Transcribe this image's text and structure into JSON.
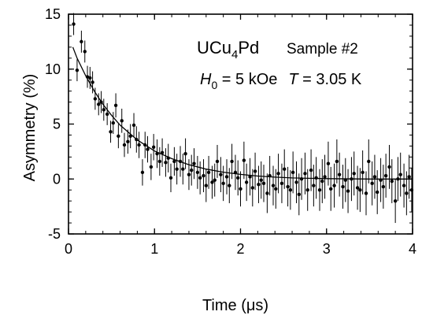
{
  "chart_data": {
    "type": "scatter",
    "xlabel": "Time  (μs)",
    "ylabel": "Asymmetry  (%)",
    "xlim": [
      0,
      4
    ],
    "ylim": [
      -5,
      15
    ],
    "x_ticks": [
      0,
      1,
      2,
      3,
      4
    ],
    "y_ticks": [
      -5,
      0,
      5,
      10,
      15
    ],
    "x_tick_labels": [
      "0",
      "1",
      "2",
      "3",
      "4"
    ],
    "y_tick_labels": [
      "-5",
      "0",
      "5",
      "10",
      "15"
    ],
    "grid": false,
    "legend": "none",
    "annotations": {
      "compound_main": "UCu",
      "compound_sub1": "4",
      "compound_end": "Pd",
      "sample": "Sample #2",
      "field_symbol": "H",
      "field_sub": "0",
      "field_value": " = 5 kOe",
      "temp_symbol": "T",
      "temp_value": " = 3.05 K"
    },
    "fit_curve": {
      "label": "",
      "x": [
        0.05,
        0.1,
        0.2,
        0.3,
        0.4,
        0.5,
        0.6,
        0.8,
        1.0,
        1.2,
        1.4,
        1.6,
        1.8,
        2.0,
        2.2,
        2.4,
        2.6,
        2.8,
        3.0,
        3.5,
        4.0
      ],
      "y": [
        12.0,
        11.0,
        9.4,
        8.0,
        6.8,
        5.8,
        4.9,
        3.55,
        2.55,
        1.85,
        1.3,
        0.9,
        0.62,
        0.42,
        0.27,
        0.17,
        0.1,
        0.06,
        0.03,
        0.0,
        0.0
      ]
    },
    "series": [
      {
        "name": "",
        "x": [
          0.06,
          0.1,
          0.15,
          0.19,
          0.22,
          0.25,
          0.28,
          0.31,
          0.35,
          0.38,
          0.41,
          0.45,
          0.49,
          0.52,
          0.55,
          0.58,
          0.62,
          0.65,
          0.69,
          0.72,
          0.76,
          0.79,
          0.82,
          0.86,
          0.89,
          0.92,
          0.96,
          0.99,
          1.03,
          1.06,
          1.09,
          1.13,
          1.16,
          1.19,
          1.23,
          1.26,
          1.3,
          1.33,
          1.36,
          1.4,
          1.43,
          1.46,
          1.5,
          1.53,
          1.57,
          1.6,
          1.63,
          1.67,
          1.7,
          1.73,
          1.77,
          1.8,
          1.84,
          1.87,
          1.9,
          1.94,
          1.97,
          2.0,
          2.04,
          2.07,
          2.11,
          2.14,
          2.17,
          2.21,
          2.24,
          2.27,
          2.31,
          2.34,
          2.38,
          2.41,
          2.44,
          2.48,
          2.51,
          2.55,
          2.58,
          2.61,
          2.65,
          2.68,
          2.71,
          2.75,
          2.78,
          2.82,
          2.85,
          2.88,
          2.92,
          2.95,
          2.98,
          3.02,
          3.05,
          3.09,
          3.12,
          3.15,
          3.19,
          3.22,
          3.25,
          3.29,
          3.32,
          3.36,
          3.39,
          3.42,
          3.46,
          3.49,
          3.53,
          3.56,
          3.59,
          3.63,
          3.66,
          3.69,
          3.73,
          3.76,
          3.8,
          3.83,
          3.86,
          3.9,
          3.93,
          3.96,
          3.99
        ],
        "y": [
          14.1,
          9.9,
          12.5,
          11.6,
          9.3,
          9.2,
          8.8,
          7.3,
          6.8,
          7.0,
          6.3,
          5.9,
          4.3,
          5.1,
          6.7,
          3.9,
          5.3,
          3.1,
          3.4,
          3.9,
          4.9,
          3.6,
          3.1,
          0.6,
          3.1,
          2.7,
          1.1,
          2.9,
          2.3,
          1.6,
          2.4,
          1.5,
          1.9,
          0.1,
          1.6,
          0.9,
          1.6,
          0.9,
          2.3,
          0.4,
          0.8,
          1.4,
          0.6,
          0.1,
          0.3,
          -0.6,
          0.6,
          -0.3,
          -0.1,
          1.6,
          0.4,
          -0.4,
          0.2,
          -0.6,
          1.6,
          0.6,
          0.1,
          -0.9,
          1.7,
          -0.3,
          0.2,
          -0.8,
          0.7,
          -0.5,
          -0.1,
          -0.4,
          -1.3,
          0.3,
          -0.6,
          -0.9,
          0.5,
          -0.4,
          0.9,
          -0.7,
          -1.0,
          0.6,
          -0.3,
          -1.4,
          0.0,
          0.5,
          -1.0,
          0.8,
          -0.6,
          0.1,
          -1.0,
          -0.2,
          0.2,
          1.4,
          -0.9,
          -0.6,
          1.6,
          0.4,
          -0.7,
          -0.1,
          -1.1,
          0.0,
          0.5,
          -0.8,
          -1.0,
          0.6,
          -1.3,
          1.6,
          -0.4,
          0.2,
          -1.2,
          -0.1,
          -0.7,
          0.3,
          1.1,
          -0.2,
          -2.0,
          0.0,
          0.4,
          -0.6,
          -1.3,
          0.2,
          -1.0
        ],
        "err": [
          1.0,
          1.0,
          1.0,
          1.0,
          1.0,
          1.0,
          1.0,
          1.0,
          1.0,
          1.0,
          1.0,
          1.0,
          1.0,
          1.0,
          1.1,
          1.1,
          1.1,
          1.1,
          1.1,
          1.1,
          1.1,
          1.2,
          1.2,
          1.2,
          1.2,
          1.2,
          1.2,
          1.2,
          1.3,
          1.3,
          1.3,
          1.3,
          1.3,
          1.3,
          1.3,
          1.4,
          1.4,
          1.4,
          1.4,
          1.4,
          1.4,
          1.4,
          1.5,
          1.5,
          1.5,
          1.5,
          1.5,
          1.5,
          1.5,
          1.5,
          1.6,
          1.6,
          1.6,
          1.6,
          1.6,
          1.6,
          1.6,
          1.6,
          1.7,
          1.7,
          1.7,
          1.7,
          1.7,
          1.7,
          1.7,
          1.7,
          1.8,
          1.8,
          1.8,
          1.8,
          1.8,
          1.8,
          1.8,
          1.8,
          1.8,
          1.9,
          1.9,
          1.9,
          1.9,
          1.9,
          1.9,
          1.9,
          1.9,
          1.9,
          1.9,
          2.0,
          2.0,
          2.0,
          2.0,
          2.0,
          2.0,
          2.0,
          2.0,
          2.0,
          2.0,
          2.0,
          2.0,
          2.0,
          2.0,
          2.0,
          2.0,
          2.0,
          2.0,
          2.0,
          2.0,
          2.0,
          2.0,
          2.0,
          2.0,
          2.0,
          2.0,
          2.0,
          2.0,
          2.0,
          2.0,
          2.0,
          2.0
        ]
      }
    ]
  }
}
